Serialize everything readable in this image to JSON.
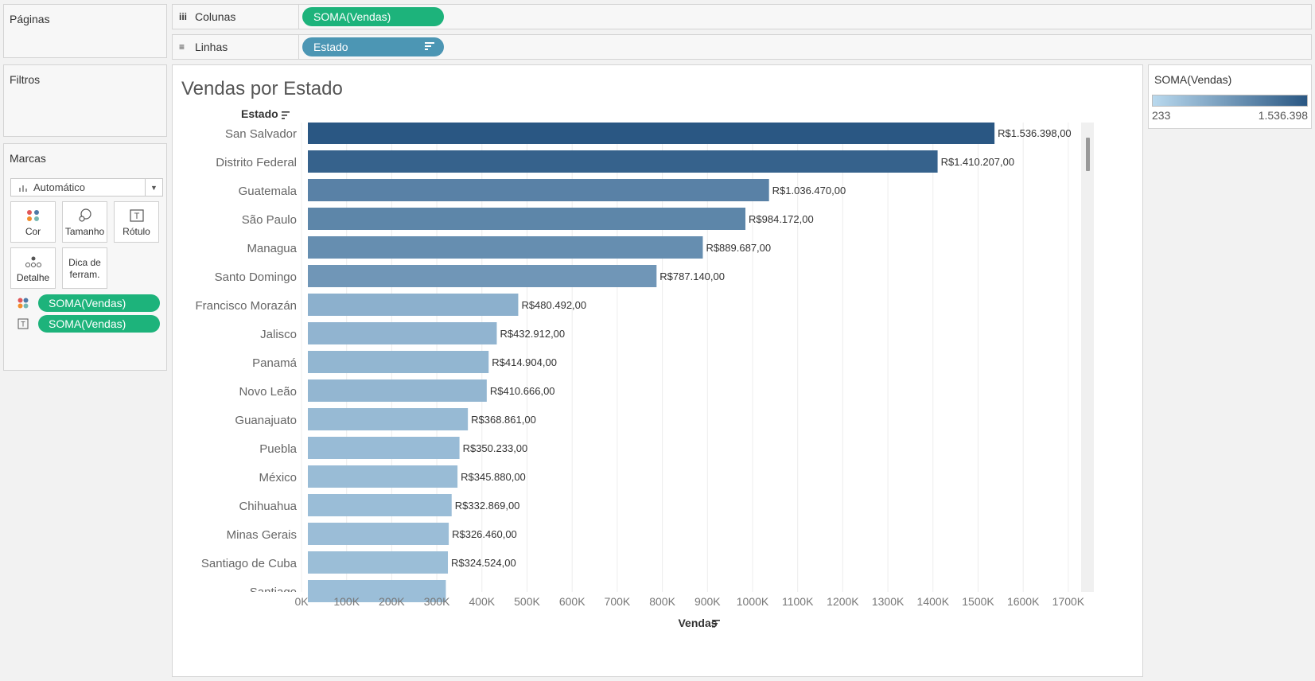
{
  "cards": {
    "pages_title": "Páginas",
    "filters_title": "Filtros",
    "marks_title": "Marcas"
  },
  "shelves": {
    "columns_label": "Colunas",
    "columns_pill": "SOMA(Vendas)",
    "rows_label": "Linhas",
    "rows_pill": "Estado"
  },
  "marks": {
    "type": "Automático",
    "buttons": [
      "Cor",
      "Tamanho",
      "Rótulo",
      "Detalhe"
    ],
    "tooltip_line1": "Dica de",
    "tooltip_line2": "ferram.",
    "color_pill": "SOMA(Vendas)",
    "label_pill": "SOMA(Vendas)"
  },
  "legend": {
    "title": "SOMA(Vendas)",
    "min": "233",
    "max": "1.536.398",
    "color_low": "#b9d9ee",
    "color_high": "#2a5783"
  },
  "chart_data": {
    "type": "bar",
    "orientation": "horizontal",
    "title": "Vendas por Estado",
    "row_header": "Estado",
    "xlabel": "Vendas",
    "xlim": [
      0,
      1800000
    ],
    "xticks": [
      0,
      100000,
      200000,
      300000,
      400000,
      500000,
      600000,
      700000,
      800000,
      900000,
      1000000,
      1100000,
      1200000,
      1300000,
      1400000,
      1500000,
      1600000,
      1700000
    ],
    "xtick_labels": [
      "0K",
      "100K",
      "200K",
      "300K",
      "400K",
      "500K",
      "600K",
      "700K",
      "800K",
      "900K",
      "1000K",
      "1100K",
      "1200K",
      "1300K",
      "1400K",
      "1500K",
      "1600K",
      "1700K"
    ],
    "categories": [
      "San Salvador",
      "Distrito Federal",
      "Guatemala",
      "São Paulo",
      "Managua",
      "Santo Domingo",
      "Francisco Morazán",
      "Jalisco",
      "Panamá",
      "Novo Leão",
      "Guanajuato",
      "Puebla",
      "México",
      "Chihuahua",
      "Minas Gerais",
      "Santiago de Cuba",
      "Santiago"
    ],
    "values": [
      1536398,
      1410207,
      1036470,
      984172,
      889687,
      787140,
      480492,
      432912,
      414904,
      410666,
      368861,
      350233,
      345880,
      332869,
      326460,
      324524,
      320000
    ],
    "labels": [
      "R$1.536.398,00",
      "R$1.410.207,00",
      "R$1.036.470,00",
      "R$984.172,00",
      "R$889.687,00",
      "R$787.140,00",
      "R$480.492,00",
      "R$432.912,00",
      "R$414.904,00",
      "R$410.666,00",
      "R$368.861,00",
      "R$350.233,00",
      "R$345.880,00",
      "R$332.869,00",
      "R$326.460,00",
      "R$324.524,00",
      ""
    ],
    "color_range": [
      233,
      1536398
    ],
    "grid": true
  }
}
